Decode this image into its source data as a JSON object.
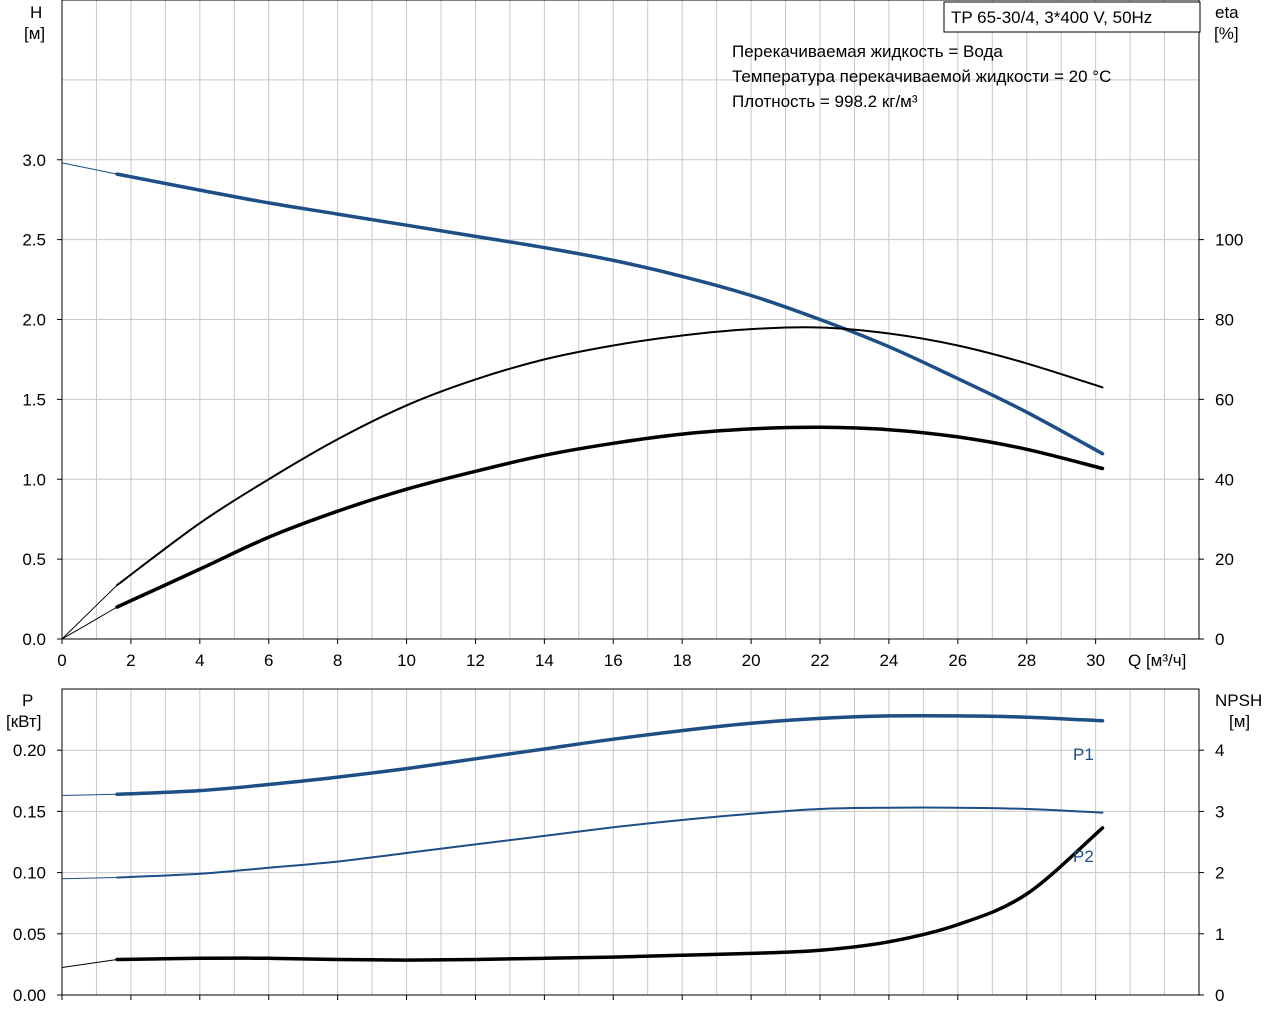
{
  "chart_data": [
    {
      "type": "line",
      "panel": "head-efficiency",
      "title_box": "TP 65-30/4, 3*400 V, 50Hz",
      "notes": [
        "Перекачиваемая жидкость = Вода",
        "Температура перекачиваемой жидкости = 20 °C",
        "Плотность = 998.2 кг/м³"
      ],
      "x_label": "Q [м³/ч]",
      "x_ticks": [
        "0",
        "2",
        "4",
        "6",
        "8",
        "10",
        "12",
        "14",
        "16",
        "18",
        "20",
        "22",
        "24",
        "26",
        "28",
        "30"
      ],
      "xlim": [
        0,
        33
      ],
      "y_left_label": [
        "H",
        "[м]"
      ],
      "y_left_ticks": [
        "0.0",
        "0.5",
        "1.0",
        "1.5",
        "2.0",
        "2.5",
        "3.0"
      ],
      "y_left_lim": [
        0,
        4
      ],
      "y_right_label": [
        "eta",
        "[%]"
      ],
      "y_right_ticks": [
        "0",
        "20",
        "40",
        "60",
        "80",
        "100"
      ],
      "y_right_lim": [
        0,
        160
      ],
      "grid": true,
      "series": [
        {
          "id": "H",
          "axis": "left",
          "color": "#1d4e85",
          "width": 3.5,
          "lead_in": [
            [
              0,
              2.98
            ],
            [
              1.6,
              2.91
            ]
          ],
          "points": [
            [
              1.6,
              2.91
            ],
            [
              4,
              2.81
            ],
            [
              6,
              2.73
            ],
            [
              8,
              2.66
            ],
            [
              10,
              2.59
            ],
            [
              12,
              2.52
            ],
            [
              14,
              2.45
            ],
            [
              16,
              2.37
            ],
            [
              18,
              2.27
            ],
            [
              20,
              2.15
            ],
            [
              22,
              2.0
            ],
            [
              24,
              1.83
            ],
            [
              26,
              1.63
            ],
            [
              28,
              1.42
            ],
            [
              30.2,
              1.16
            ]
          ]
        },
        {
          "id": "eta-thin",
          "axis": "right",
          "color": "#000000",
          "width": 2,
          "lead_in": [
            [
              0,
              0
            ],
            [
              1.6,
              13.5
            ]
          ],
          "points": [
            [
              1.6,
              13.5
            ],
            [
              4,
              29
            ],
            [
              6,
              40
            ],
            [
              8,
              50
            ],
            [
              10,
              58.5
            ],
            [
              12,
              65
            ],
            [
              14,
              70
            ],
            [
              16,
              73.5
            ],
            [
              18,
              76
            ],
            [
              20,
              77.6
            ],
            [
              22,
              78
            ],
            [
              24,
              76.5
            ],
            [
              26,
              73.5
            ],
            [
              28,
              69
            ],
            [
              30.2,
              63
            ]
          ]
        },
        {
          "id": "eta-thick",
          "axis": "right",
          "color": "#000000",
          "width": 3.5,
          "lead_in": [
            [
              0,
              0
            ],
            [
              1.6,
              8
            ]
          ],
          "points": [
            [
              1.6,
              8
            ],
            [
              4,
              17.5
            ],
            [
              6,
              25.5
            ],
            [
              8,
              32
            ],
            [
              10,
              37.5
            ],
            [
              12,
              42
            ],
            [
              14,
              46
            ],
            [
              16,
              49
            ],
            [
              18,
              51.3
            ],
            [
              20,
              52.6
            ],
            [
              22,
              53
            ],
            [
              24,
              52.4
            ],
            [
              26,
              50.6
            ],
            [
              28,
              47.5
            ],
            [
              30.2,
              42.7
            ]
          ]
        }
      ]
    },
    {
      "type": "line",
      "panel": "power-npsh",
      "x_ticks_shared": true,
      "xlim": [
        0,
        33
      ],
      "y_left_label": [
        "P",
        "[кВт]"
      ],
      "y_left_ticks": [
        "0.00",
        "0.05",
        "0.10",
        "0.15",
        "0.20"
      ],
      "y_left_lim": [
        0,
        0.25
      ],
      "y_right_label": [
        "NPSH",
        "[м]"
      ],
      "y_right_ticks": [
        "0",
        "1",
        "2",
        "3",
        "4"
      ],
      "y_right_lim": [
        0,
        5
      ],
      "grid": true,
      "series": [
        {
          "id": "P1",
          "label": "P1",
          "axis": "left",
          "color": "#1d4e85",
          "width": 3.5,
          "lead_in": [
            [
              0,
              0.163
            ],
            [
              1.6,
              0.164
            ]
          ],
          "points": [
            [
              1.6,
              0.164
            ],
            [
              4,
              0.167
            ],
            [
              6,
              0.172
            ],
            [
              8,
              0.178
            ],
            [
              10,
              0.185
            ],
            [
              12,
              0.193
            ],
            [
              14,
              0.201
            ],
            [
              16,
              0.209
            ],
            [
              18,
              0.216
            ],
            [
              20,
              0.222
            ],
            [
              22,
              0.226
            ],
            [
              24,
              0.228
            ],
            [
              26,
              0.228
            ],
            [
              28,
              0.227
            ],
            [
              30.2,
              0.224
            ]
          ]
        },
        {
          "id": "P2",
          "label": "P2",
          "axis": "left",
          "color": "#1d4e85",
          "width": 2,
          "lead_in": [
            [
              0,
              0.095
            ],
            [
              1.6,
              0.096
            ]
          ],
          "points": [
            [
              1.6,
              0.096
            ],
            [
              4,
              0.099
            ],
            [
              6,
              0.104
            ],
            [
              8,
              0.109
            ],
            [
              10,
              0.116
            ],
            [
              12,
              0.123
            ],
            [
              14,
              0.13
            ],
            [
              16,
              0.137
            ],
            [
              18,
              0.143
            ],
            [
              20,
              0.148
            ],
            [
              22,
              0.152
            ],
            [
              24,
              0.153
            ],
            [
              26,
              0.153
            ],
            [
              28,
              0.152
            ],
            [
              30.2,
              0.149
            ]
          ]
        },
        {
          "id": "NPSH",
          "axis": "right",
          "color": "#000000",
          "width": 3.5,
          "lead_in": [
            [
              0,
              0.45
            ],
            [
              1.6,
              0.58
            ]
          ],
          "points": [
            [
              1.6,
              0.58
            ],
            [
              4,
              0.6
            ],
            [
              6,
              0.6
            ],
            [
              8,
              0.58
            ],
            [
              10,
              0.57
            ],
            [
              12,
              0.58
            ],
            [
              14,
              0.6
            ],
            [
              16,
              0.62
            ],
            [
              18,
              0.65
            ],
            [
              20,
              0.68
            ],
            [
              22,
              0.73
            ],
            [
              24,
              0.87
            ],
            [
              26,
              1.15
            ],
            [
              28,
              1.65
            ],
            [
              30.2,
              2.73
            ]
          ]
        }
      ]
    }
  ]
}
